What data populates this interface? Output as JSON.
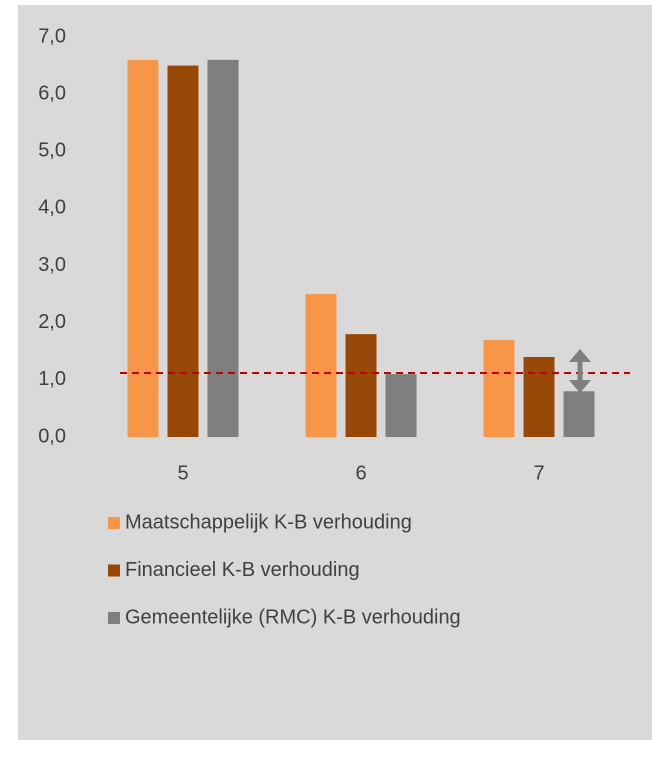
{
  "chart_data": {
    "type": "bar",
    "categories": [
      "5",
      "6",
      "7"
    ],
    "series": [
      {
        "name": "Maatschappelijk K-B verhouding",
        "color": "#f79646",
        "values": [
          6.6,
          2.5,
          1.7
        ]
      },
      {
        "name": "Financieel K-B verhouding",
        "color": "#974806",
        "values": [
          6.5,
          1.8,
          1.4
        ]
      },
      {
        "name": "Gemeentelijke (RMC) K-B verhouding",
        "color": "#7f7f7f",
        "values": [
          6.6,
          1.1,
          0.8
        ]
      }
    ],
    "ylim": [
      0,
      7
    ],
    "yticks": [
      {
        "value": 0,
        "label": "0,0"
      },
      {
        "value": 1,
        "label": "1,0"
      },
      {
        "value": 2,
        "label": "2,0"
      },
      {
        "value": 3,
        "label": "3,0"
      },
      {
        "value": 4,
        "label": "4,0"
      },
      {
        "value": 5,
        "label": "5,0"
      },
      {
        "value": 6,
        "label": "6,0"
      },
      {
        "value": 7,
        "label": "7,0"
      }
    ],
    "grid": false,
    "reference_line": {
      "value": 1.12,
      "color": "#c00000"
    },
    "legend": "bottom"
  }
}
